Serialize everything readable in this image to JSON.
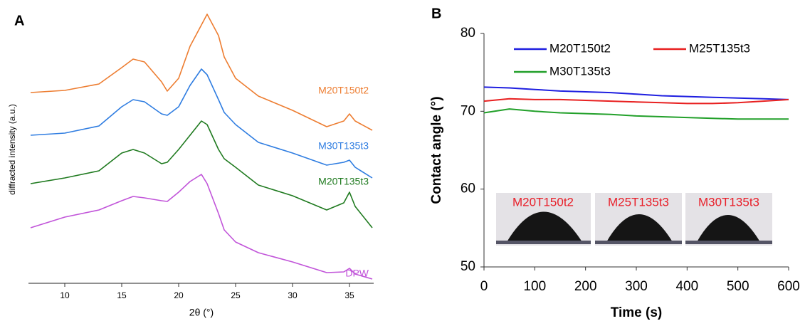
{
  "chart_data": [
    {
      "type": "line",
      "panel_label": "A",
      "x_label": "2θ (°)",
      "y_label": "diffracted intensity (a.u.)",
      "x": [
        7,
        10,
        13,
        15,
        16,
        17,
        18.5,
        19,
        20,
        21,
        22,
        22.5,
        23.5,
        24,
        25,
        27,
        30,
        33,
        34.5,
        35,
        35.5,
        37
      ],
      "xlim": [
        7,
        37
      ],
      "xticks": [
        10,
        15,
        20,
        25,
        30,
        35
      ],
      "ylim": [
        0,
        385
      ],
      "legend": "inline",
      "series": [
        {
          "name": "M20T150t2",
          "color": "#ed7d31",
          "values": [
            268,
            271,
            280,
            303,
            315,
            311,
            283,
            270,
            288,
            333,
            363,
            378,
            348,
            318,
            288,
            263,
            243,
            220,
            228,
            238,
            228,
            215
          ]
        },
        {
          "name": "M30T135t3",
          "color": "#2f7de1",
          "values": [
            208,
            211,
            221,
            248,
            258,
            255,
            238,
            236,
            248,
            278,
            301,
            293,
            258,
            240,
            223,
            198,
            183,
            166,
            170,
            173,
            163,
            148
          ]
        },
        {
          "name": "M20T135t3",
          "color": "#1f7a1f",
          "values": [
            140,
            148,
            158,
            183,
            188,
            183,
            168,
            170,
            188,
            208,
            228,
            223,
            188,
            175,
            163,
            138,
            123,
            103,
            113,
            128,
            108,
            78
          ]
        },
        {
          "name": "DPW",
          "color": "#c154d9",
          "values": [
            78,
            93,
            103,
            116,
            122,
            120,
            116,
            115,
            128,
            143,
            153,
            140,
            98,
            75,
            58,
            43,
            30,
            15,
            16,
            21,
            13,
            6
          ]
        }
      ]
    },
    {
      "type": "line",
      "panel_label": "B",
      "x_label": "Time (s)",
      "y_label": "Contact angle (°)",
      "x": [
        0,
        50,
        100,
        150,
        200,
        250,
        300,
        350,
        400,
        450,
        500,
        550,
        600
      ],
      "xlim": [
        0,
        600
      ],
      "xticks": [
        0,
        100,
        200,
        300,
        400,
        500,
        600
      ],
      "ylim": [
        50,
        80
      ],
      "yticks": [
        50,
        60,
        70,
        80
      ],
      "legend": "upper",
      "series": [
        {
          "name": "M20T150t2",
          "color": "#1f1fe0",
          "values": [
            73.1,
            73.0,
            72.8,
            72.6,
            72.5,
            72.4,
            72.2,
            72.0,
            71.9,
            71.8,
            71.7,
            71.6,
            71.5
          ]
        },
        {
          "name": "M25T135t3",
          "color": "#e82020",
          "values": [
            71.3,
            71.6,
            71.5,
            71.5,
            71.4,
            71.3,
            71.2,
            71.1,
            71.0,
            71.0,
            71.1,
            71.3,
            71.5
          ]
        },
        {
          "name": "M30T135t3",
          "color": "#22a02a",
          "values": [
            69.8,
            70.3,
            70.0,
            69.8,
            69.7,
            69.6,
            69.4,
            69.3,
            69.2,
            69.1,
            69.0,
            69.0,
            69.0
          ]
        }
      ],
      "annotations": [
        "M20T150t2",
        "M25T135t3",
        "M30T135t3"
      ]
    }
  ]
}
